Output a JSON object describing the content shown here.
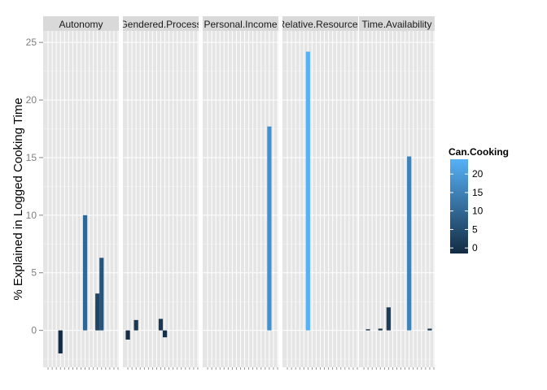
{
  "chart_data": {
    "type": "bar",
    "ylabel": "% Explained in Logged Cooking Time",
    "xlabel": "",
    "ylim": [
      -3.2,
      26.0
    ],
    "y_ticks": [
      0,
      5,
      10,
      15,
      20,
      25
    ],
    "grid": true,
    "legend_placement": "right",
    "legend": {
      "title": "Can.Cooking",
      "ticks": [
        0,
        5,
        10,
        15,
        20
      ],
      "range": [
        -1.5,
        24
      ],
      "low_color": "#132b43",
      "high_color": "#56b1f7"
    },
    "n_slots": 18,
    "panels": [
      {
        "name": "Autonomy",
        "bars": [
          {
            "slot": 4,
            "value": -2.0
          },
          {
            "slot": 10,
            "value": 10.0
          },
          {
            "slot": 13,
            "value": 3.2
          },
          {
            "slot": 14,
            "value": 6.3
          }
        ]
      },
      {
        "name": "Gendered.Process",
        "bars": [
          {
            "slot": 1,
            "value": -0.8
          },
          {
            "slot": 3,
            "value": 0.9
          },
          {
            "slot": 9,
            "value": 1.0
          },
          {
            "slot": 10,
            "value": -0.6
          }
        ]
      },
      {
        "name": "Personal.Income",
        "bars": [
          {
            "slot": 16,
            "value": 17.7
          }
        ]
      },
      {
        "name": "Relative.Resources",
        "bars": [
          {
            "slot": 6,
            "value": 24.2
          }
        ]
      },
      {
        "name": "Time.Availability",
        "bars": [
          {
            "slot": 2,
            "value": 0.1
          },
          {
            "slot": 5,
            "value": 0.15
          },
          {
            "slot": 7,
            "value": 2.0
          },
          {
            "slot": 12,
            "value": 15.1
          },
          {
            "slot": 17,
            "value": 0.15
          }
        ]
      }
    ]
  }
}
